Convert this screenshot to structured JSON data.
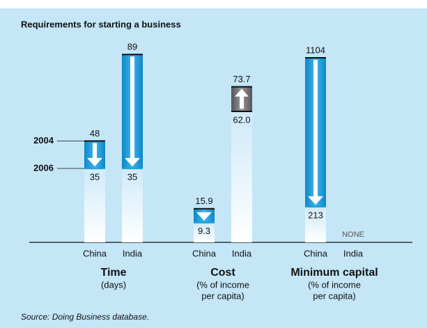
{
  "title": "Requirements for starting a business",
  "source": "Source: Doing Business database.",
  "chart_data": [
    {
      "type": "bar",
      "title": "Time",
      "subtitle": [
        "(days)"
      ],
      "categories": [
        "China",
        "India"
      ],
      "series": [
        {
          "name": "2004",
          "color": "#1a9fd9",
          "values": [
            48,
            89
          ]
        },
        {
          "name": "2006",
          "color": "#d6eefa",
          "values": [
            35,
            35
          ]
        }
      ],
      "ylim": [
        0,
        95
      ]
    },
    {
      "type": "bar",
      "title": "Cost",
      "subtitle": [
        "(% of income",
        "per capita)"
      ],
      "categories": [
        "China",
        "India"
      ],
      "series": [
        {
          "name": "2004",
          "color": "#1a9fd9",
          "values": [
            15.9,
            62
          ],
          "value_labels": [
            "15.9",
            "62.0"
          ]
        },
        {
          "name": "2006",
          "color": "#d6eefa",
          "values": [
            9.3,
            73.7
          ],
          "value_labels": [
            "9.3",
            "73.7"
          ]
        }
      ],
      "ylim": [
        0,
        95
      ]
    },
    {
      "type": "bar",
      "title": "Minimum capital",
      "subtitle": [
        "(% of income",
        "per capita)"
      ],
      "categories": [
        "China",
        "India"
      ],
      "series": [
        {
          "name": "2004",
          "color": "#1a9fd9",
          "values": [
            1104,
            null
          ]
        },
        {
          "name": "2006",
          "color": "#d6eefa",
          "values": [
            213,
            null
          ]
        }
      ],
      "annotation": "NONE",
      "ylim": [
        0,
        1200
      ]
    }
  ]
}
